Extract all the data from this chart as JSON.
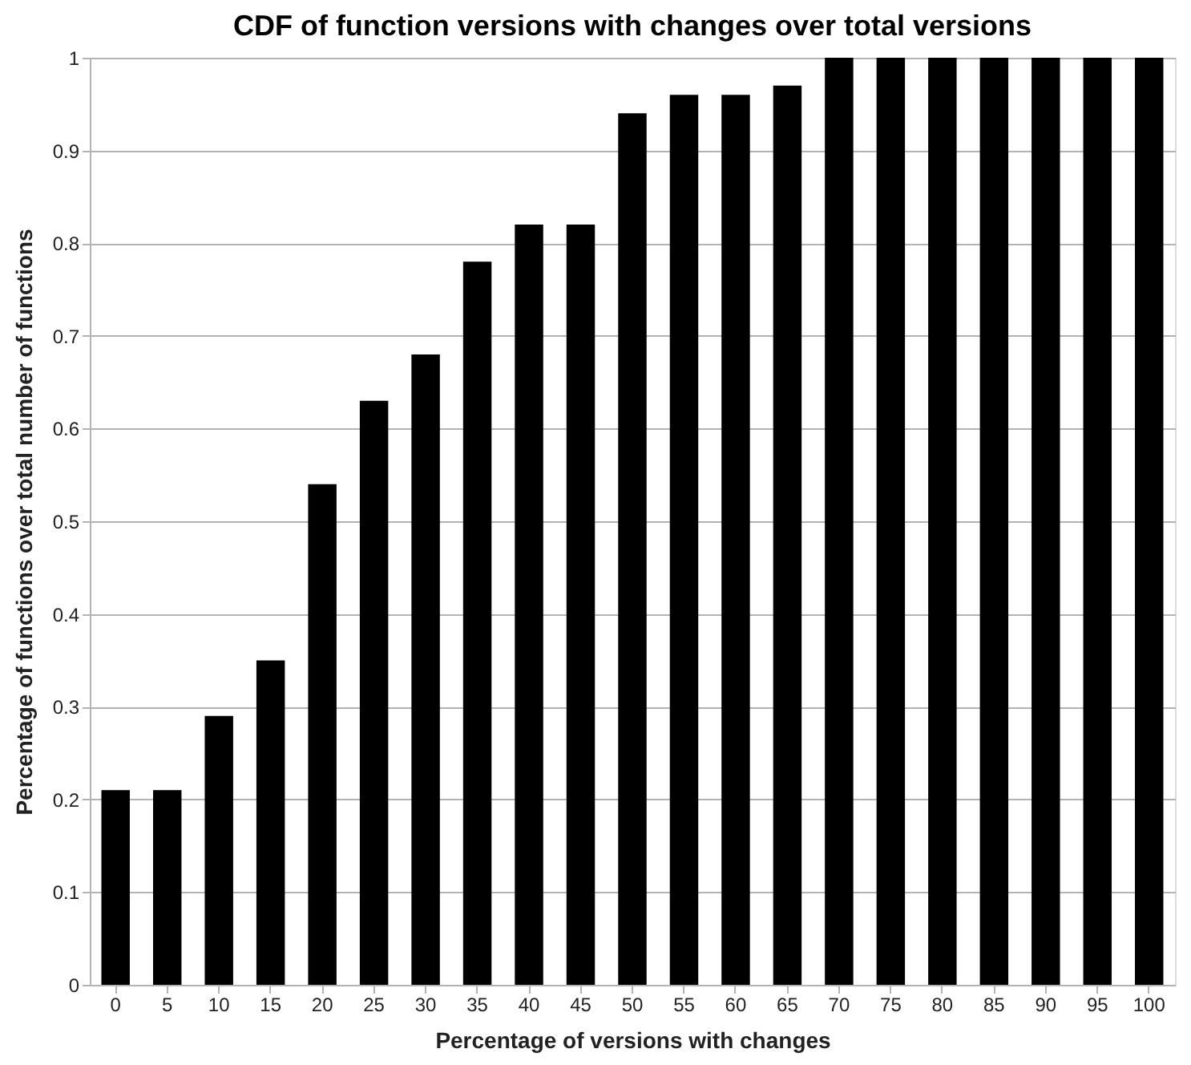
{
  "chart_data": {
    "type": "bar",
    "title": "CDF of function versions with changes over total versions",
    "xlabel": "Percentage of versions with changes",
    "ylabel": "Percentage of functions over total number of functions",
    "categories": [
      "0",
      "5",
      "10",
      "15",
      "20",
      "25",
      "30",
      "35",
      "40",
      "45",
      "50",
      "55",
      "60",
      "65",
      "70",
      "75",
      "80",
      "85",
      "90",
      "95",
      "100"
    ],
    "values": [
      0.21,
      0.21,
      0.29,
      0.35,
      0.54,
      0.63,
      0.68,
      0.78,
      0.82,
      0.82,
      0.94,
      0.96,
      0.96,
      0.97,
      1,
      1,
      1,
      1,
      1,
      1,
      1
    ],
    "color": "#000000",
    "ylim": [
      0,
      1
    ],
    "yticks": [
      0,
      0.1,
      0.2,
      0.3,
      0.4,
      0.5,
      0.6,
      0.7,
      0.8,
      0.9,
      1
    ],
    "grid": "y"
  }
}
